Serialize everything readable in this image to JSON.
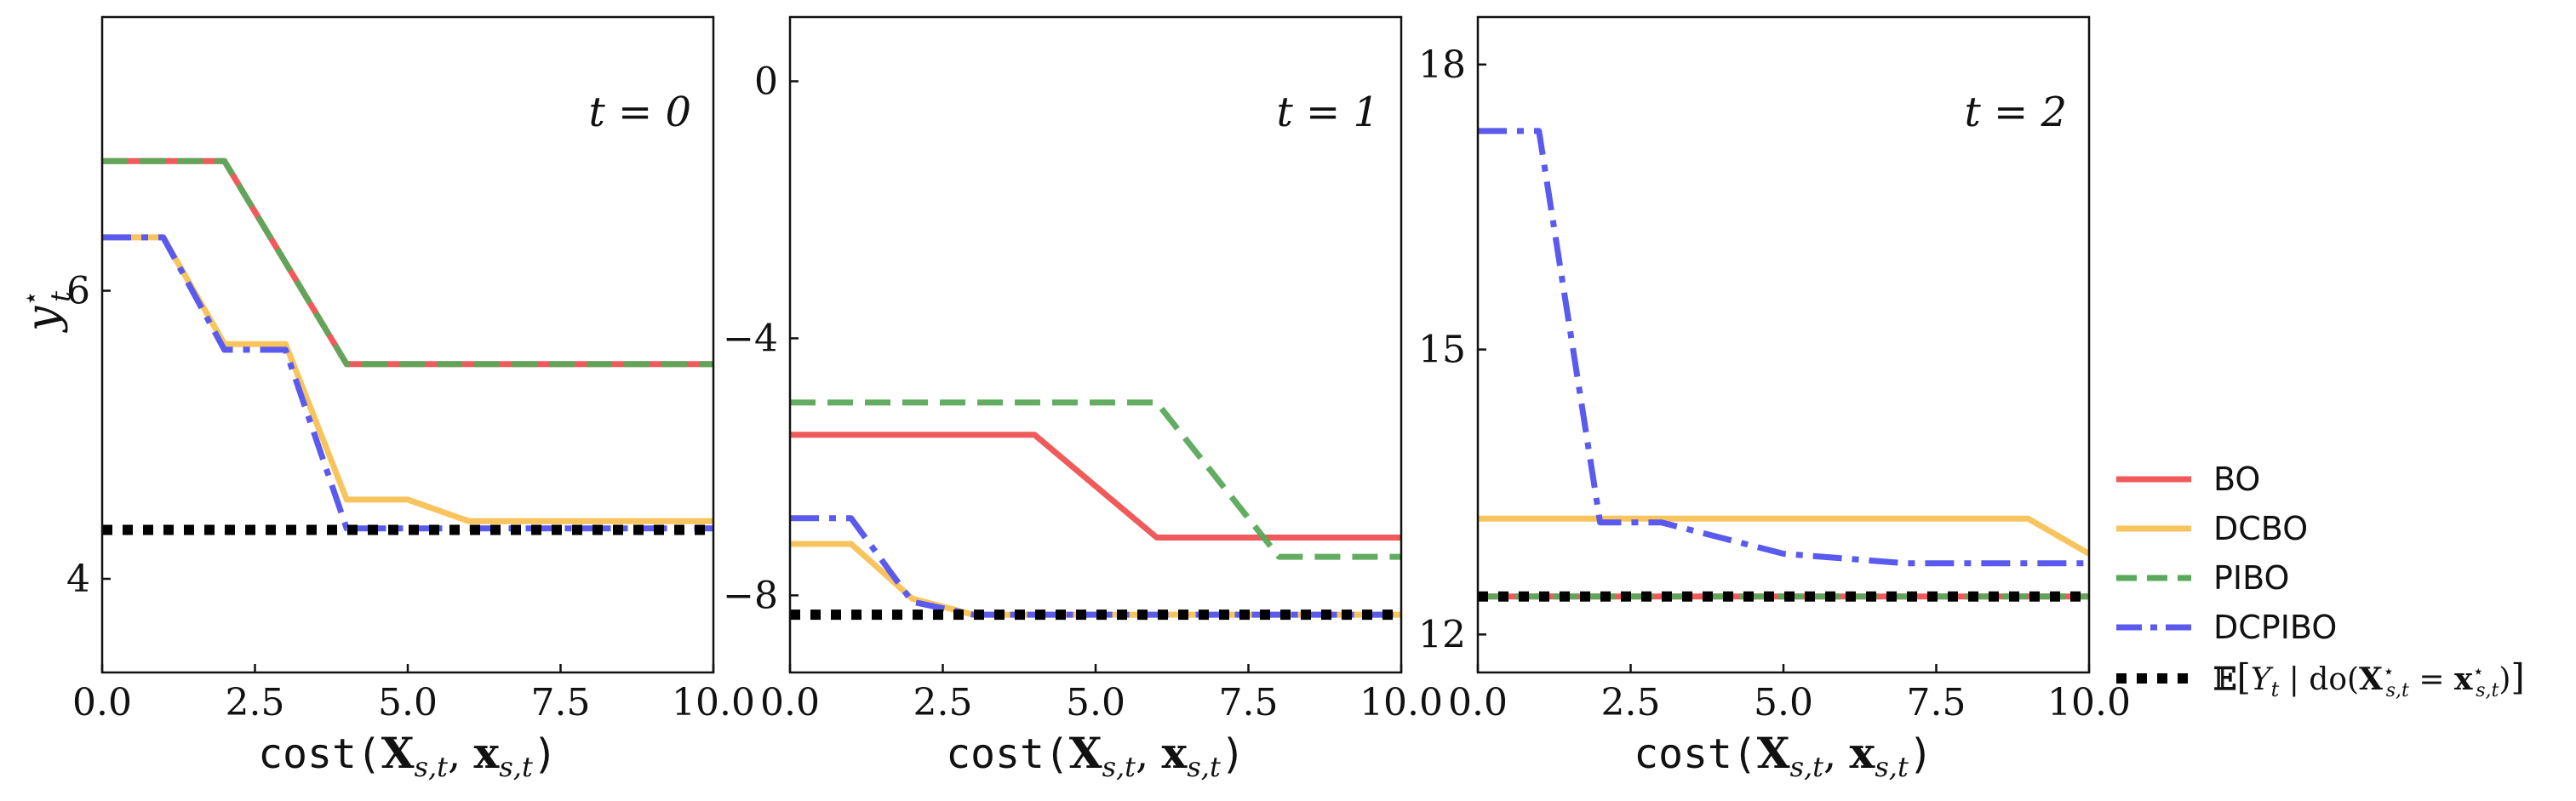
{
  "chart_data": [
    {
      "type": "line",
      "panel_label": "t = 0",
      "ylabel": "y⋆t",
      "xlabel": "cost(Xs,t, xs,t)",
      "xlim": [
        0,
        10
      ],
      "ylim": [
        3.35,
        7.9
      ],
      "xticks": [
        0.0,
        2.5,
        5.0,
        7.5,
        10.0
      ],
      "xtick_labels": [
        "0.0",
        "2.5",
        "5.0",
        "7.5",
        "10.0"
      ],
      "yticks": [
        4,
        6
      ],
      "ytick_labels": [
        "4",
        "6"
      ],
      "series": [
        {
          "name": "BO",
          "x": [
            0,
            2,
            4,
            10
          ],
          "y": [
            6.9,
            6.9,
            5.49,
            5.49
          ]
        },
        {
          "name": "DCBO",
          "x": [
            0,
            1,
            2,
            3,
            4,
            5,
            6,
            10
          ],
          "y": [
            6.37,
            6.37,
            5.63,
            5.63,
            4.55,
            4.55,
            4.4,
            4.4
          ]
        },
        {
          "name": "PIBO",
          "x": [
            0,
            2,
            4,
            10
          ],
          "y": [
            6.9,
            6.9,
            5.49,
            5.49
          ]
        },
        {
          "name": "DCPIBO",
          "x": [
            0,
            1,
            2,
            3,
            4,
            10
          ],
          "y": [
            6.37,
            6.37,
            5.59,
            5.59,
            4.35,
            4.35
          ]
        },
        {
          "name": "𝔼[Yt | do(X⋆s,t = x⋆s,t)]",
          "x": [
            0,
            10
          ],
          "y": [
            4.34,
            4.34
          ]
        }
      ]
    },
    {
      "type": "line",
      "panel_label": "t = 1",
      "xlabel": "cost(Xs,t, xs,t)",
      "xlim": [
        0,
        10
      ],
      "ylim": [
        -9.2,
        1.0
      ],
      "xticks": [
        0.0,
        2.5,
        5.0,
        7.5,
        10.0
      ],
      "xtick_labels": [
        "0.0",
        "2.5",
        "5.0",
        "7.5",
        "10.0"
      ],
      "yticks": [
        -8,
        -4,
        0
      ],
      "ytick_labels": [
        "−8",
        "−4",
        "0"
      ],
      "series": [
        {
          "name": "BO",
          "x": [
            0,
            4,
            6,
            10
          ],
          "y": [
            -5.5,
            -5.5,
            -7.1,
            -7.1
          ]
        },
        {
          "name": "DCBO",
          "x": [
            0,
            1,
            2,
            3,
            10
          ],
          "y": [
            -7.2,
            -7.2,
            -8.05,
            -8.3,
            -8.3
          ]
        },
        {
          "name": "PIBO",
          "x": [
            0,
            6,
            8,
            10
          ],
          "y": [
            -5.0,
            -5.0,
            -7.4,
            -7.4
          ]
        },
        {
          "name": "DCPIBO",
          "x": [
            0,
            1,
            2,
            3,
            10
          ],
          "y": [
            -6.8,
            -6.8,
            -8.1,
            -8.3,
            -8.3
          ]
        },
        {
          "name": "𝔼[Yt | do(X⋆s,t = x⋆s,t)]",
          "x": [
            0,
            10
          ],
          "y": [
            -8.3,
            -8.3
          ]
        }
      ]
    },
    {
      "type": "line",
      "panel_label": "t = 2",
      "xlabel": "cost(Xs,t, xs,t)",
      "xlim": [
        0,
        10
      ],
      "ylim": [
        11.6,
        18.5
      ],
      "xticks": [
        0.0,
        2.5,
        5.0,
        7.5,
        10.0
      ],
      "xtick_labels": [
        "0.0",
        "2.5",
        "5.0",
        "7.5",
        "10.0"
      ],
      "yticks": [
        12,
        15,
        18
      ],
      "ytick_labels": [
        "12",
        "15",
        "18"
      ],
      "series": [
        {
          "name": "BO",
          "x": [
            0,
            10
          ],
          "y": [
            12.4,
            12.4
          ]
        },
        {
          "name": "DCBO",
          "x": [
            0,
            9,
            10
          ],
          "y": [
            13.22,
            13.22,
            12.85
          ]
        },
        {
          "name": "PIBO",
          "x": [
            0,
            10
          ],
          "y": [
            12.4,
            12.4
          ]
        },
        {
          "name": "DCPIBO",
          "x": [
            0,
            1,
            2,
            3,
            5,
            7,
            10
          ],
          "y": [
            17.3,
            17.3,
            13.18,
            13.18,
            12.85,
            12.75,
            12.75
          ]
        },
        {
          "name": "𝔼[Yt | do(X⋆s,t = x⋆s,t)]",
          "x": [
            0,
            10
          ],
          "y": [
            12.4,
            12.4
          ]
        }
      ]
    }
  ],
  "legend": {
    "placement": "right",
    "items": [
      {
        "label": "BO",
        "color": "#f05a5a",
        "dash": "solid"
      },
      {
        "label": "DCBO",
        "color": "#f7c45e",
        "dash": "solid"
      },
      {
        "label": "PIBO",
        "color": "#5aa95a",
        "dash": "dashed"
      },
      {
        "label": "DCPIBO",
        "color": "#5a5aee",
        "dash": "dashdot"
      },
      {
        "label": "𝔼[Yt | do(X⋆s,t = x⋆s,t)]",
        "color": "#000000",
        "dash": "dotted"
      }
    ]
  }
}
